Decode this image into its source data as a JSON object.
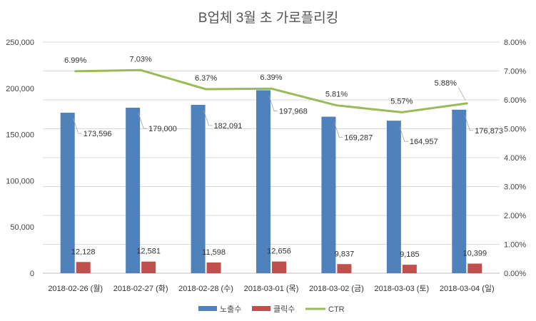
{
  "chart_data": {
    "type": "bar",
    "title": "B업체 3월 초 가로플리킹",
    "categories": [
      "2018-02-26 (월)",
      "2018-02-27 (화)",
      "2018-02-28 (수)",
      "2018-03-01 (목)",
      "2018-03-02 (금)",
      "2018-03-03 (토)",
      "2018-03-04 (일)"
    ],
    "series": [
      {
        "name": "노출수",
        "kind": "bar",
        "axis": "left",
        "color": "#4f81bd",
        "values": [
          173596,
          179000,
          182091,
          197968,
          169287,
          164957,
          176873
        ],
        "labels": [
          "173,596",
          "179,000",
          "182,091",
          "197,968",
          "169,287",
          "164,957",
          "176,873"
        ]
      },
      {
        "name": "클릭수",
        "kind": "bar",
        "axis": "left",
        "color": "#c0504d",
        "values": [
          12128,
          12581,
          11598,
          12656,
          9837,
          9185,
          10399
        ],
        "labels": [
          "12,128",
          "12,581",
          "11,598",
          "12,656",
          "9,837",
          "9,185",
          "10,399"
        ]
      },
      {
        "name": "CTR",
        "kind": "line",
        "axis": "right",
        "color": "#9bbb59",
        "values": [
          6.99,
          7.03,
          6.37,
          6.39,
          5.81,
          5.57,
          5.88
        ],
        "labels": [
          "6.99%",
          "7.03%",
          "6.37%",
          "6.39%",
          "5.81%",
          "5.57%",
          "5.88%"
        ]
      }
    ],
    "y_left": {
      "ylim": [
        0,
        250000
      ],
      "ticks": [
        "0",
        "50,000",
        "100,000",
        "150,000",
        "200,000",
        "250,000"
      ]
    },
    "y_right": {
      "ylim": [
        0,
        8
      ],
      "ticks": [
        "0.00%",
        "1.00%",
        "2.00%",
        "3.00%",
        "4.00%",
        "5.00%",
        "6.00%",
        "7.00%",
        "8.00%"
      ]
    },
    "grid": true,
    "legend": "bottom"
  }
}
